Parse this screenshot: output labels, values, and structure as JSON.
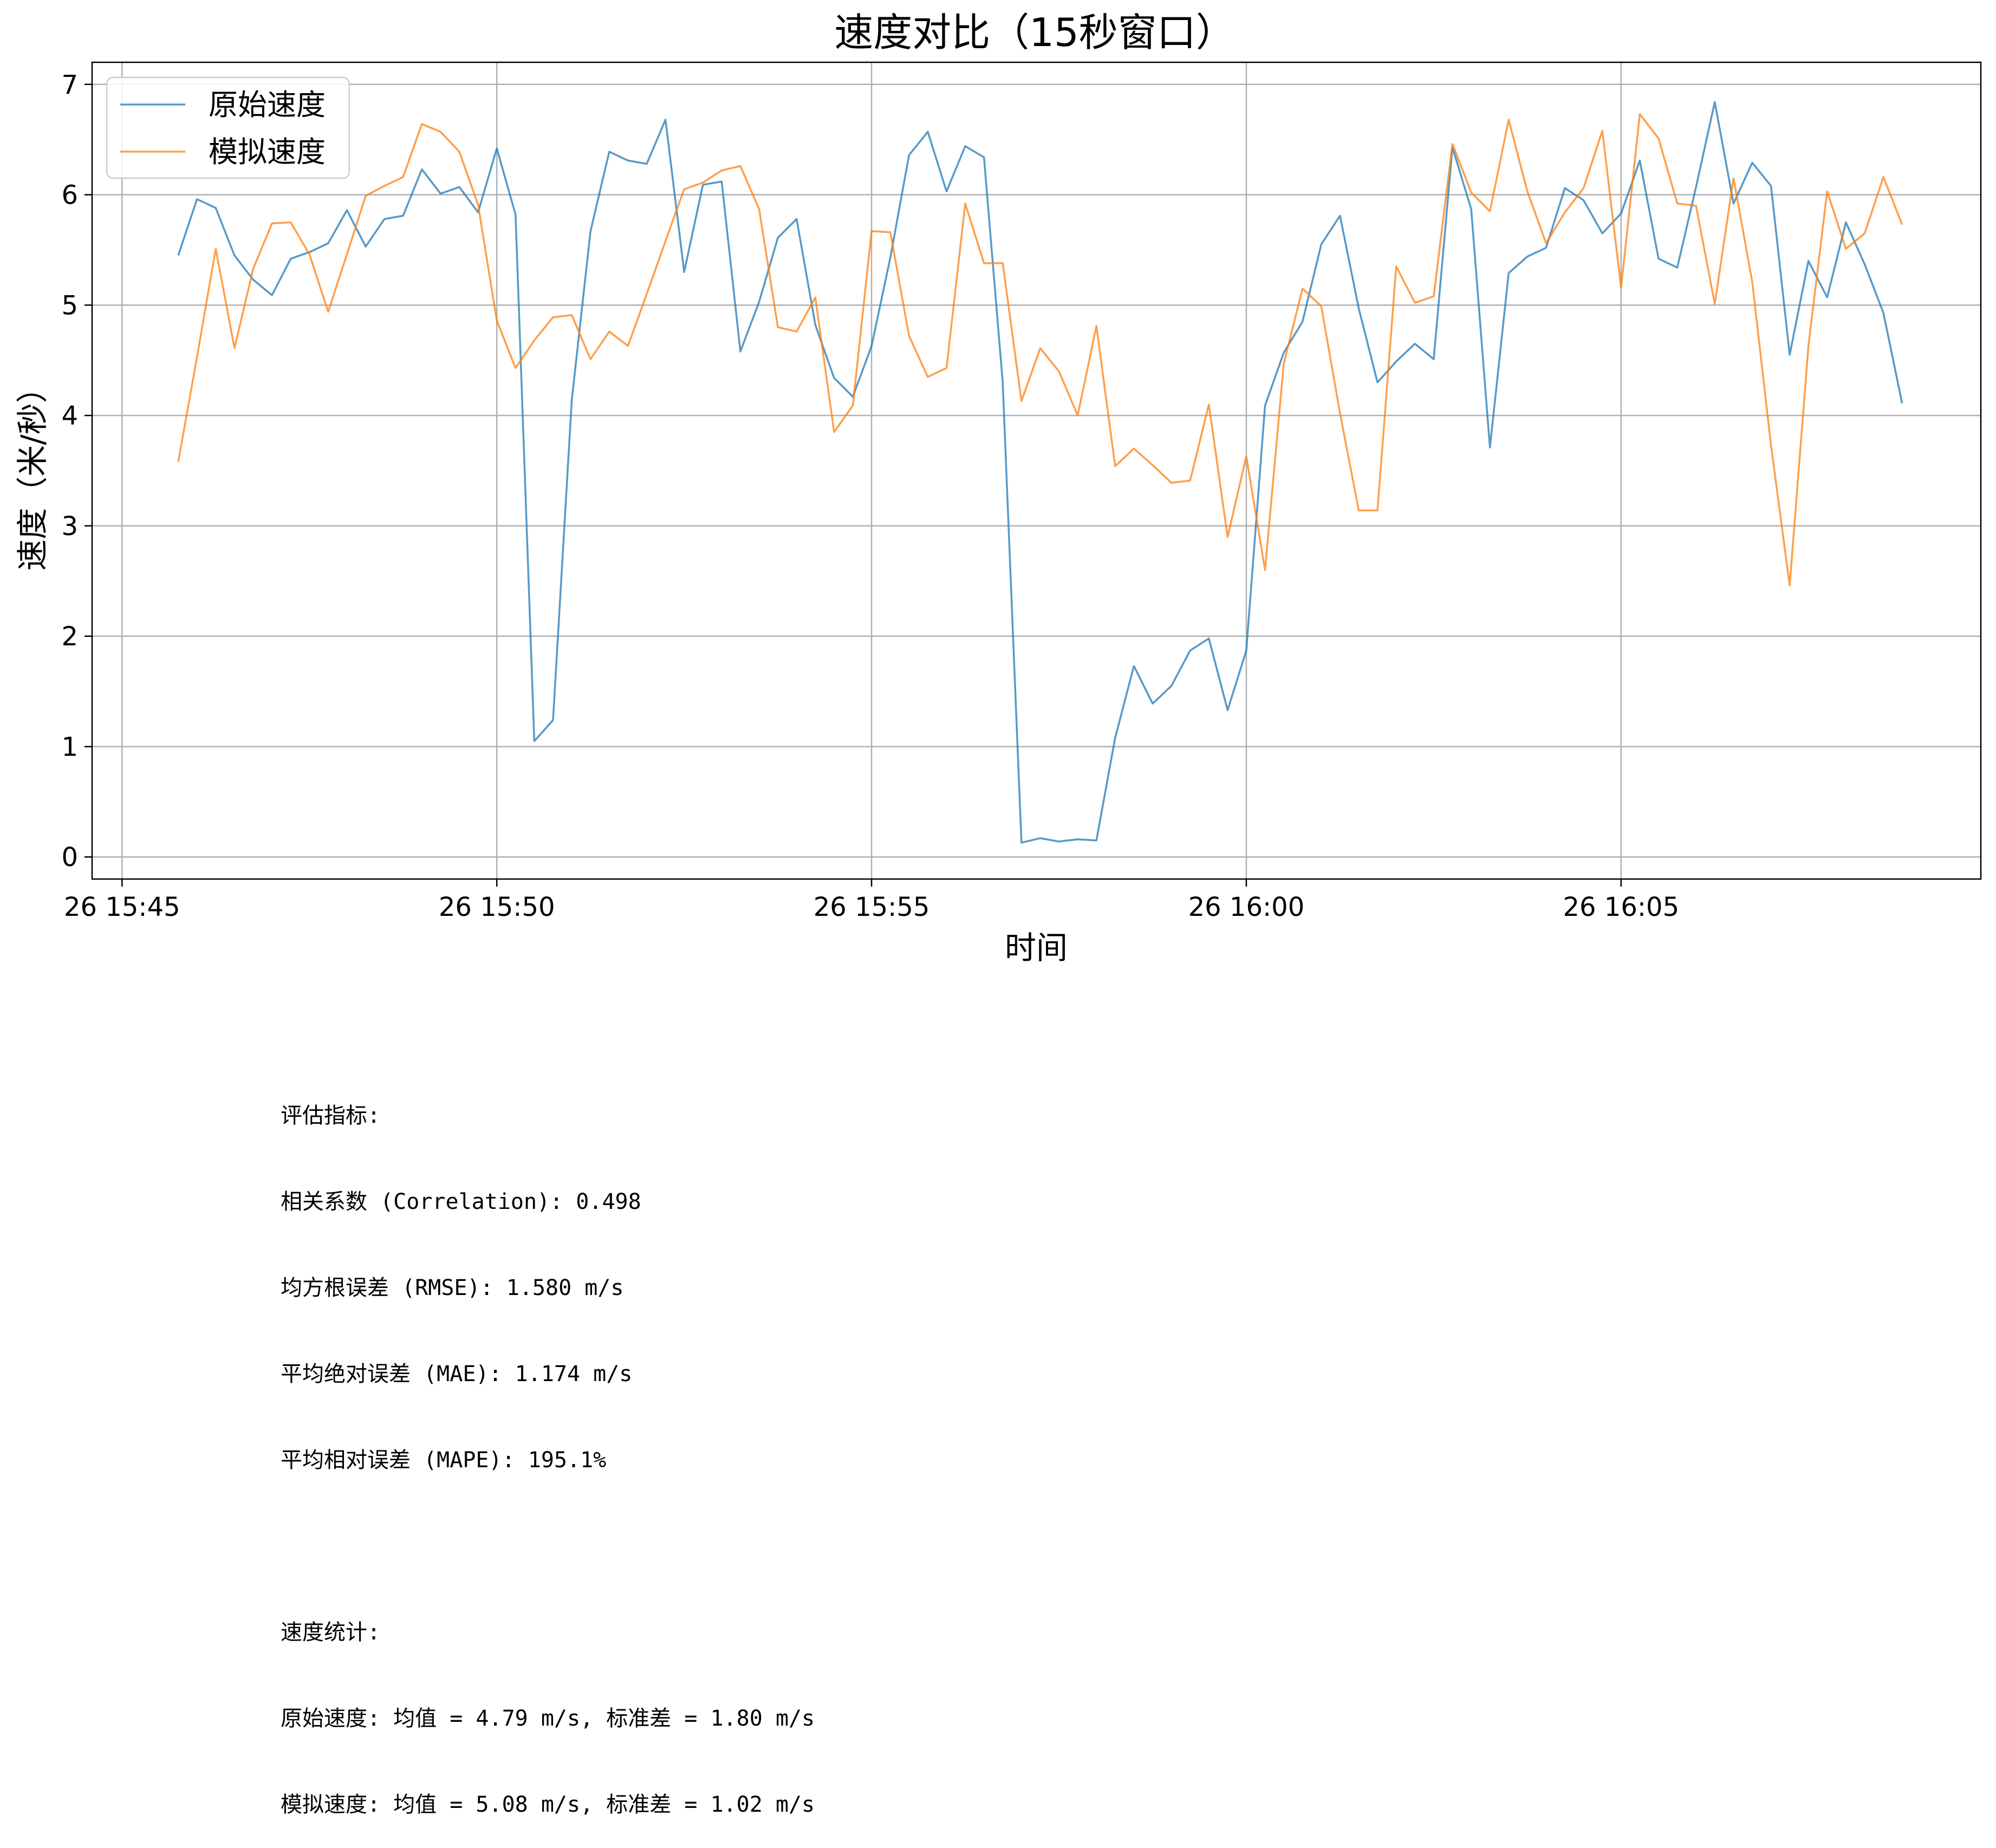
{
  "chart_data": {
    "type": "line",
    "title": "速度对比（15秒窗口）",
    "xlabel": "时间",
    "ylabel": "速度（米/秒）",
    "x_tick_labels": [
      "26 15:45",
      "26 15:50",
      "26 15:55",
      "26 16:00",
      "26 16:05"
    ],
    "y_tick_labels": [
      "0",
      "1",
      "2",
      "3",
      "4",
      "5",
      "6",
      "7"
    ],
    "xlim": [
      "15:44:36",
      "16:09:48"
    ],
    "ylim": [
      -0.2,
      7.2
    ],
    "grid": true,
    "legend_position": "upper-left",
    "x_start": "15:45:45",
    "x_step_seconds": 15,
    "series": [
      {
        "name": "原始速度",
        "color": "#1f77b4",
        "values": [
          5.45,
          5.96,
          5.88,
          5.45,
          5.23,
          5.09,
          5.42,
          5.48,
          5.56,
          5.86,
          5.53,
          5.78,
          5.81,
          6.23,
          6.01,
          6.07,
          5.84,
          6.42,
          5.82,
          1.05,
          1.24,
          4.14,
          5.67,
          6.39,
          6.31,
          6.28,
          6.68,
          5.3,
          6.09,
          6.12,
          4.58,
          5.03,
          5.61,
          5.78,
          4.82,
          4.34,
          4.17,
          4.63,
          5.43,
          6.36,
          6.57,
          6.03,
          6.44,
          6.34,
          4.3,
          0.13,
          0.17,
          0.14,
          0.16,
          0.15,
          1.08,
          1.73,
          1.39,
          1.55,
          1.87,
          1.98,
          1.33,
          1.87,
          4.09,
          4.57,
          4.85,
          5.55,
          5.81,
          4.97,
          4.3,
          4.49,
          4.65,
          4.51,
          6.43,
          5.87,
          3.71,
          5.29,
          5.44,
          5.52,
          6.06,
          5.95,
          5.65,
          5.83,
          6.31,
          5.42,
          5.34,
          6.07,
          6.84,
          5.92,
          6.29,
          6.08,
          4.55,
          5.4,
          5.07,
          5.75,
          5.37,
          4.93,
          4.11
        ]
      },
      {
        "name": "模拟速度",
        "color": "#ff7f0e",
        "values": [
          3.58,
          4.53,
          5.51,
          4.61,
          5.33,
          5.74,
          5.75,
          5.46,
          4.94,
          5.46,
          5.99,
          6.08,
          6.16,
          6.64,
          6.57,
          6.39,
          5.91,
          4.86,
          4.43,
          4.68,
          4.89,
          4.91,
          4.51,
          4.76,
          4.63,
          5.1,
          5.58,
          6.05,
          6.11,
          6.22,
          6.26,
          5.87,
          4.8,
          4.76,
          5.07,
          3.85,
          4.09,
          5.67,
          5.66,
          4.72,
          4.35,
          4.43,
          5.92,
          5.38,
          5.38,
          4.13,
          4.61,
          4.4,
          4.0,
          4.81,
          3.54,
          3.7,
          3.55,
          3.39,
          3.41,
          4.1,
          2.9,
          3.63,
          2.6,
          4.47,
          5.15,
          4.99,
          4.02,
          3.14,
          3.14,
          5.35,
          5.02,
          5.08,
          6.46,
          6.02,
          5.85,
          6.68,
          6.03,
          5.56,
          5.84,
          6.06,
          6.58,
          5.16,
          6.73,
          6.51,
          5.92,
          5.9,
          5.01,
          6.15,
          5.21,
          3.73,
          2.46,
          4.63,
          6.03,
          5.51,
          5.65,
          6.16,
          5.73
        ]
      }
    ]
  },
  "metrics": {
    "heading": "评估指标:",
    "correlation": "相关系数 (Correlation): 0.498",
    "rmse": "均方根误差 (RMSE): 1.580 m/s",
    "mae": "平均绝对误差 (MAE): 1.174 m/s",
    "mape": "平均相对误差 (MAPE): 195.1%"
  },
  "stats": {
    "heading": "速度统计:",
    "original": "原始速度: 均值 = 4.79 m/s, 标准差 = 1.80 m/s",
    "simulated": "模拟速度: 均值 = 5.08 m/s, 标准差 = 1.02 m/s"
  }
}
